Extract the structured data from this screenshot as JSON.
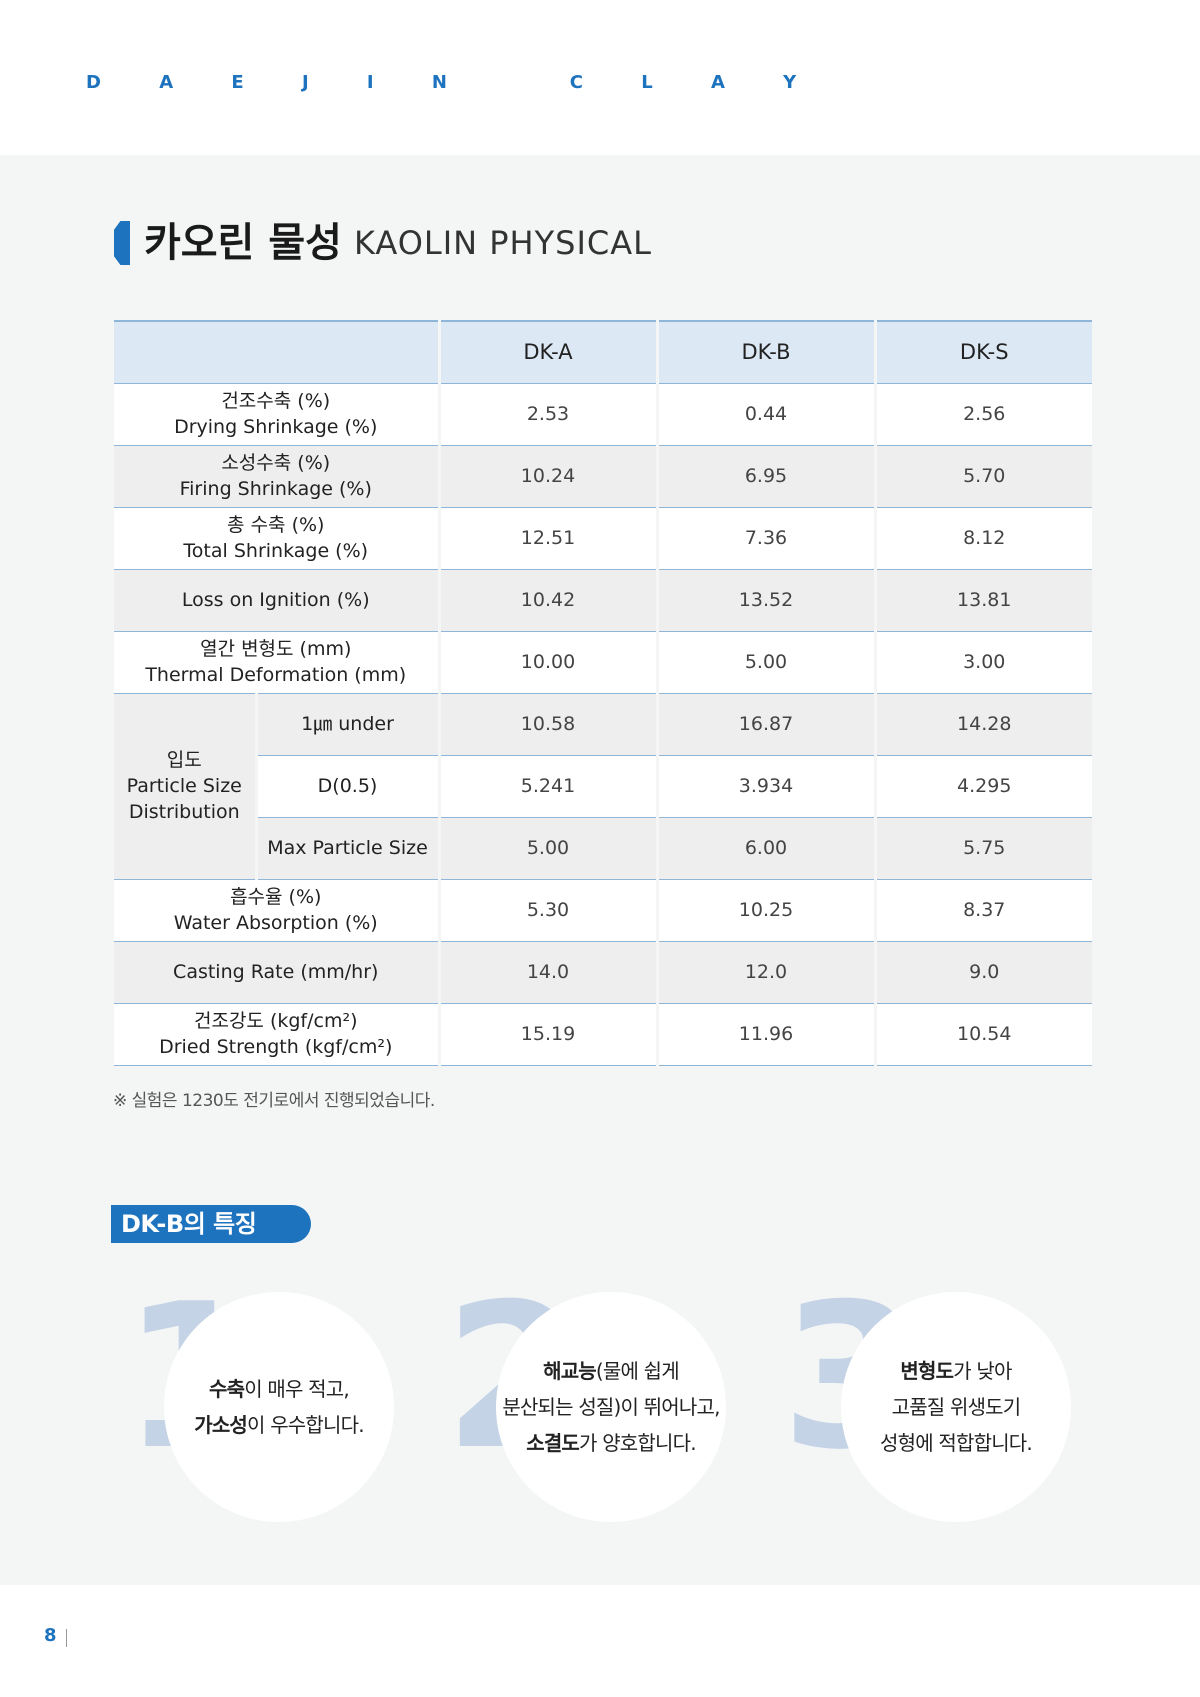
{
  "header": {
    "brand": "D A E J I N   C L A Y"
  },
  "section": {
    "title_ko": "카오린 물성",
    "title_en": "KAOLIN PHYSICAL"
  },
  "table": {
    "columns": [
      "",
      "DK-A",
      "DK-B",
      "DK-S"
    ],
    "rows": [
      {
        "label_ko": "건조수축 (%)",
        "label_en": "Drying Shrinkage (%)",
        "values": [
          "2.53",
          "0.44",
          "2.56"
        ]
      },
      {
        "label_ko": "소성수축 (%)",
        "label_en": "Firing Shrinkage (%)",
        "values": [
          "10.24",
          "6.95",
          "5.70"
        ]
      },
      {
        "label_ko": "총 수축 (%)",
        "label_en": "Total Shrinkage (%)",
        "values": [
          "12.51",
          "7.36",
          "8.12"
        ]
      },
      {
        "label_ko": "",
        "label_en": "Loss on Ignition (%)",
        "values": [
          "10.42",
          "13.52",
          "13.81"
        ]
      },
      {
        "label_ko": "열간 변형도 (mm)",
        "label_en": "Thermal Deformation (mm)",
        "values": [
          "10.00",
          "5.00",
          "3.00"
        ]
      }
    ],
    "psd": {
      "group_ko": "입도",
      "group_en1": "Particle Size",
      "group_en2": "Distribution",
      "subrows": [
        {
          "label": "1㎛ under",
          "values": [
            "10.58",
            "16.87",
            "14.28"
          ]
        },
        {
          "label": "D(0.5)",
          "values": [
            "5.241",
            "3.934",
            "4.295"
          ]
        },
        {
          "label": "Max Particle Size",
          "values": [
            "5.00",
            "6.00",
            "5.75"
          ]
        }
      ]
    },
    "rows2": [
      {
        "label_ko": "흡수율 (%)",
        "label_en": "Water Absorption (%)",
        "values": [
          "5.30",
          "10.25",
          "8.37"
        ]
      },
      {
        "label_ko": "",
        "label_en": "Casting Rate (mm/hr)",
        "values": [
          "14.0",
          "12.0",
          "9.0"
        ]
      },
      {
        "label_ko": "건조강도 (kgf/cm²)",
        "label_en": "Dried Strength (kgf/cm²)",
        "values": [
          "15.19",
          "11.96",
          "10.54"
        ]
      }
    ]
  },
  "note": "※ 실험은 1230도 전기로에서 진행되었습니다.",
  "features": {
    "title": "DK-B의 특징",
    "items": [
      {
        "num": "1",
        "lines": [
          [
            "수축",
            "이 매우 적고,"
          ],
          [
            "가소성",
            "이 우수합니다."
          ]
        ]
      },
      {
        "num": "2",
        "lines": [
          [
            "해교능",
            "(물에 쉽게"
          ],
          [
            "",
            "분산되는 성질)이 뛰어나고,"
          ],
          [
            "소결도",
            "가 양호합니다."
          ]
        ]
      },
      {
        "num": "3",
        "lines": [
          [
            "변형도",
            "가 낮아"
          ],
          [
            "",
            "고품질 위생도기"
          ],
          [
            "",
            "성형에 적합합니다."
          ]
        ]
      }
    ]
  },
  "footer": {
    "page_number": "8"
  }
}
